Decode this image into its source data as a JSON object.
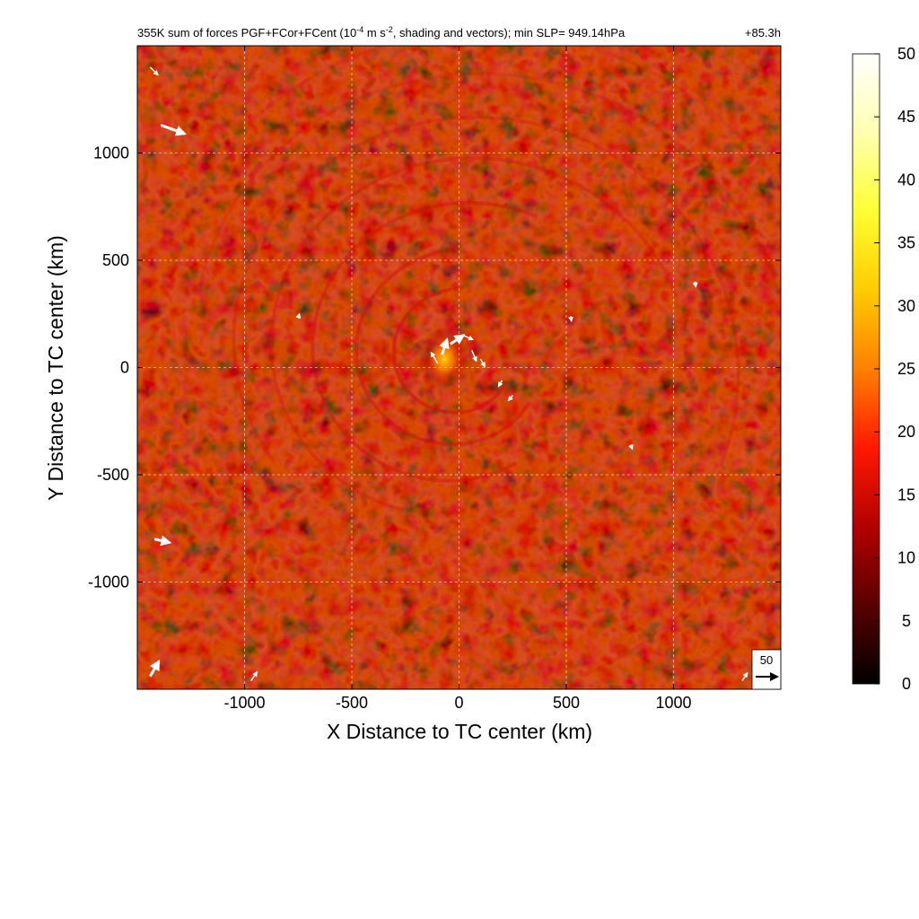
{
  "chart_data": {
    "type": "heatmap",
    "title": "355K sum of forces PGF+FCor+FCent (10",
    "title_exp": "-4",
    "title_mid": " m s",
    "title_exp2": "-2",
    "title_tail": ", shading and vectors); min SLP= 949.14hPa",
    "time_label": "+85.3h",
    "xlabel": "X Distance to TC center (km)",
    "ylabel": "Y Distance to TC center (km)",
    "xlim": [
      -1500,
      1500
    ],
    "ylim": [
      -1500,
      1500
    ],
    "xticks": [
      -1000,
      -500,
      0,
      500,
      1000
    ],
    "xtick_labels": [
      "-1000",
      "-500",
      "0",
      "500",
      "1000"
    ],
    "yticks": [
      -1000,
      -500,
      0,
      500,
      1000
    ],
    "ytick_labels": [
      "-1000",
      "-500",
      "0",
      "500",
      "1000"
    ],
    "grid": true,
    "colorbar": {
      "min": 0,
      "max": 50,
      "ticks": [
        0,
        5,
        10,
        15,
        20,
        25,
        30,
        35,
        40,
        45,
        50
      ],
      "tick_labels": [
        "0",
        "5",
        "10",
        "15",
        "20",
        "25",
        "30",
        "35",
        "40",
        "45",
        "50"
      ],
      "colormap": [
        "#000000",
        "#5a0000",
        "#b30000",
        "#ff1a00",
        "#ff8000",
        "#ffcc00",
        "#ffff33",
        "#ffffb0",
        "#ffffff"
      ]
    },
    "reference_vector": {
      "value": 50,
      "label": "50"
    },
    "vectors": [
      {
        "x": -80,
        "y": 60,
        "u": 12,
        "v": 35
      },
      {
        "x": -40,
        "y": 110,
        "u": 30,
        "v": 20
      },
      {
        "x": 20,
        "y": 150,
        "u": 22,
        "v": -10
      },
      {
        "x": 60,
        "y": 80,
        "u": 10,
        "v": -25
      },
      {
        "x": -100,
        "y": 20,
        "u": -15,
        "v": 25
      },
      {
        "x": 100,
        "y": 40,
        "u": 10,
        "v": -18
      },
      {
        "x": 200,
        "y": -60,
        "u": -8,
        "v": -14
      },
      {
        "x": 250,
        "y": -130,
        "u": -10,
        "v": -12
      },
      {
        "x": -1390,
        "y": 1130,
        "u": 55,
        "v": -20
      },
      {
        "x": -1440,
        "y": 1400,
        "u": 18,
        "v": -18
      },
      {
        "x": -1420,
        "y": -800,
        "u": 35,
        "v": -8
      },
      {
        "x": -1440,
        "y": -1440,
        "u": 20,
        "v": 35
      },
      {
        "x": -970,
        "y": -1460,
        "u": 14,
        "v": 20
      },
      {
        "x": 1320,
        "y": -1460,
        "u": 12,
        "v": 18
      },
      {
        "x": 1100,
        "y": 400,
        "u": 2,
        "v": -12
      },
      {
        "x": 800,
        "y": -360,
        "u": 4,
        "v": -10
      },
      {
        "x": -750,
        "y": 230,
        "u": 3,
        "v": 10
      },
      {
        "x": 520,
        "y": 240,
        "u": 2,
        "v": -12
      }
    ]
  }
}
